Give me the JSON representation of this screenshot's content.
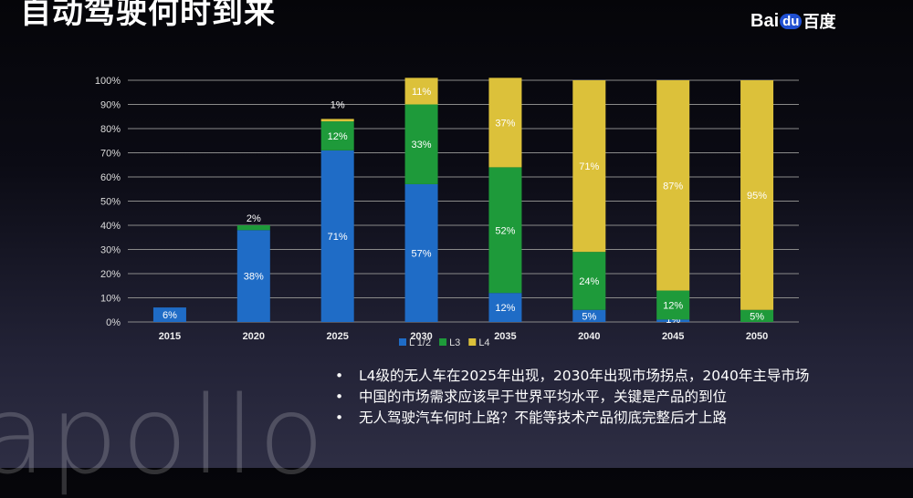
{
  "slide": {
    "title": "自动驾驶何时到来",
    "logo": {
      "text_left": "Bai",
      "paw": "du",
      "text_right": "百度"
    },
    "watermark": "apollo",
    "bullets": [
      "L4级的无人车在2025年出现，2030年出现市场拐点，2040年主导市场",
      "中国的市场需求应该早于世界平均水平，关键是产品的到位",
      "无人驾驶汽车何时上路？不能等技术产品彻底完整后才上路"
    ]
  },
  "chart_data": {
    "type": "bar",
    "stacked": true,
    "categories": [
      "2015",
      "2020",
      "2025",
      "2030",
      "2035",
      "2040",
      "2045",
      "2050"
    ],
    "series": [
      {
        "name": "L 1/2",
        "color": "#1f6cc6",
        "values": [
          6,
          38,
          71,
          57,
          12,
          5,
          1,
          0
        ]
      },
      {
        "name": "L3",
        "color": "#1e9a3a",
        "values": [
          0,
          2,
          12,
          33,
          52,
          24,
          12,
          5
        ]
      },
      {
        "name": "L4",
        "color": "#dcc13a",
        "values": [
          0,
          0,
          1,
          11,
          37,
          71,
          87,
          95
        ]
      }
    ],
    "labels": [
      [
        "6%",
        "38%",
        "71%",
        "57%",
        "12%",
        "5%",
        "1%",
        ""
      ],
      [
        "",
        "2%",
        "12%",
        "33%",
        "52%",
        "24%",
        "12%",
        "5%"
      ],
      [
        "",
        "",
        "1%",
        "11%",
        "37%",
        "71%",
        "87%",
        "95%"
      ]
    ],
    "yticks": [
      "0%",
      "10%",
      "20%",
      "30%",
      "40%",
      "50%",
      "60%",
      "70%",
      "80%",
      "90%",
      "100%"
    ],
    "ylim": [
      0,
      100
    ],
    "grid": true,
    "legend": "bottom"
  }
}
